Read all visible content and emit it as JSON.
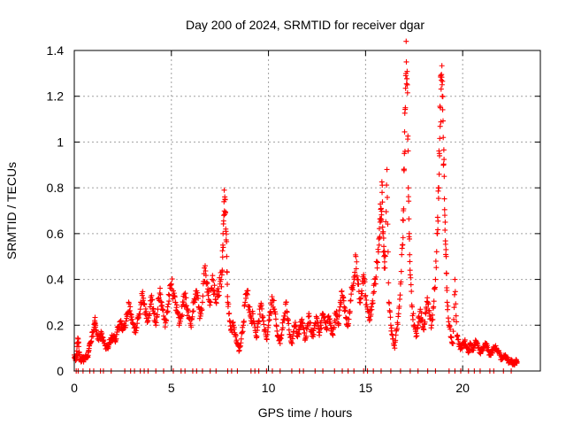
{
  "chart_data": {
    "type": "scatter",
    "title": "Day 200 of 2024, SRMTID for receiver dgar",
    "xlabel": "GPS time / hours",
    "ylabel": "SRMTID / TECUs",
    "xlim": [
      0,
      24
    ],
    "ylim": [
      0,
      1.4
    ],
    "x_ticks": [
      0,
      5,
      10,
      15,
      20
    ],
    "x_tick_labels": [
      "0",
      "5",
      "10",
      "15",
      "20"
    ],
    "y_ticks": [
      0,
      0.2,
      0.4,
      0.6,
      0.8,
      1,
      1.2,
      1.4
    ],
    "y_tick_labels": [
      "0",
      "0.2",
      "0.4",
      "0.6",
      "0.8",
      "1",
      "1.2",
      "1.4"
    ],
    "grid": true,
    "marker": "+",
    "colors": {
      "series": "#ff0000",
      "axes": "#000000",
      "grid": "#a0a0a0"
    },
    "series": [
      {
        "name": "SRMTID",
        "points": [
          [
            0.0,
            0.07
          ],
          [
            0.05,
            0.06
          ],
          [
            0.1,
            0.05
          ],
          [
            0.15,
            0.12
          ],
          [
            0.2,
            0.14
          ],
          [
            0.25,
            0.08
          ],
          [
            0.3,
            0.05
          ],
          [
            0.35,
            0.04
          ],
          [
            0.4,
            0.06
          ],
          [
            0.5,
            0.05
          ],
          [
            0.6,
            0.07
          ],
          [
            0.7,
            0.06
          ],
          [
            0.75,
            0.09
          ],
          [
            0.8,
            0.12
          ],
          [
            0.9,
            0.15
          ],
          [
            1.0,
            0.18
          ],
          [
            1.05,
            0.22
          ],
          [
            1.1,
            0.2
          ],
          [
            1.2,
            0.14
          ],
          [
            1.3,
            0.15
          ],
          [
            1.4,
            0.16
          ],
          [
            1.5,
            0.13
          ],
          [
            1.6,
            0.11
          ],
          [
            1.7,
            0.1
          ],
          [
            1.8,
            0.12
          ],
          [
            1.9,
            0.14
          ],
          [
            2.0,
            0.15
          ],
          [
            2.1,
            0.13
          ],
          [
            2.2,
            0.17
          ],
          [
            2.3,
            0.19
          ],
          [
            2.4,
            0.22
          ],
          [
            2.5,
            0.18
          ],
          [
            2.6,
            0.2
          ],
          [
            2.7,
            0.23
          ],
          [
            2.8,
            0.3
          ],
          [
            2.9,
            0.25
          ],
          [
            3.0,
            0.21
          ],
          [
            3.1,
            0.17
          ],
          [
            3.2,
            0.19
          ],
          [
            3.3,
            0.24
          ],
          [
            3.4,
            0.27
          ],
          [
            3.5,
            0.33
          ],
          [
            3.6,
            0.29
          ],
          [
            3.7,
            0.26
          ],
          [
            3.8,
            0.22
          ],
          [
            3.9,
            0.28
          ],
          [
            4.0,
            0.31
          ],
          [
            4.1,
            0.25
          ],
          [
            4.2,
            0.2
          ],
          [
            4.3,
            0.27
          ],
          [
            4.4,
            0.34
          ],
          [
            4.5,
            0.3
          ],
          [
            4.6,
            0.24
          ],
          [
            4.7,
            0.21
          ],
          [
            4.8,
            0.28
          ],
          [
            4.9,
            0.33
          ],
          [
            5.0,
            0.38
          ],
          [
            5.1,
            0.35
          ],
          [
            5.2,
            0.3
          ],
          [
            5.3,
            0.26
          ],
          [
            5.4,
            0.2
          ],
          [
            5.5,
            0.24
          ],
          [
            5.6,
            0.29
          ],
          [
            5.7,
            0.32
          ],
          [
            5.8,
            0.27
          ],
          [
            5.9,
            0.23
          ],
          [
            6.0,
            0.2
          ],
          [
            6.1,
            0.26
          ],
          [
            6.2,
            0.3
          ],
          [
            6.3,
            0.35
          ],
          [
            6.4,
            0.28
          ],
          [
            6.5,
            0.24
          ],
          [
            6.6,
            0.3
          ],
          [
            6.7,
            0.45
          ],
          [
            6.8,
            0.38
          ],
          [
            6.9,
            0.33
          ],
          [
            7.0,
            0.3
          ],
          [
            7.1,
            0.4
          ],
          [
            7.2,
            0.35
          ],
          [
            7.3,
            0.3
          ],
          [
            7.4,
            0.36
          ],
          [
            7.5,
            0.38
          ],
          [
            7.6,
            0.42
          ],
          [
            7.65,
            0.55
          ],
          [
            7.7,
            0.68
          ],
          [
            7.75,
            0.76
          ],
          [
            7.8,
            0.62
          ],
          [
            7.85,
            0.5
          ],
          [
            7.9,
            0.3
          ],
          [
            8.0,
            0.22
          ],
          [
            8.1,
            0.18
          ],
          [
            8.2,
            0.2
          ],
          [
            8.3,
            0.15
          ],
          [
            8.4,
            0.12
          ],
          [
            8.5,
            0.09
          ],
          [
            8.6,
            0.14
          ],
          [
            8.7,
            0.2
          ],
          [
            8.8,
            0.3
          ],
          [
            8.9,
            0.35
          ],
          [
            9.0,
            0.28
          ],
          [
            9.1,
            0.22
          ],
          [
            9.2,
            0.25
          ],
          [
            9.3,
            0.19
          ],
          [
            9.4,
            0.15
          ],
          [
            9.5,
            0.22
          ],
          [
            9.6,
            0.28
          ],
          [
            9.7,
            0.24
          ],
          [
            9.8,
            0.18
          ],
          [
            9.9,
            0.14
          ],
          [
            10.0,
            0.2
          ],
          [
            10.1,
            0.26
          ],
          [
            10.2,
            0.31
          ],
          [
            10.3,
            0.27
          ],
          [
            10.4,
            0.2
          ],
          [
            10.5,
            0.15
          ],
          [
            10.6,
            0.12
          ],
          [
            10.7,
            0.18
          ],
          [
            10.8,
            0.24
          ],
          [
            10.9,
            0.3
          ],
          [
            11.0,
            0.22
          ],
          [
            11.1,
            0.16
          ],
          [
            11.2,
            0.12
          ],
          [
            11.3,
            0.17
          ],
          [
            11.4,
            0.2
          ],
          [
            11.5,
            0.15
          ],
          [
            11.6,
            0.18
          ],
          [
            11.7,
            0.22
          ],
          [
            11.8,
            0.19
          ],
          [
            11.9,
            0.14
          ],
          [
            12.0,
            0.2
          ],
          [
            12.1,
            0.24
          ],
          [
            12.2,
            0.18
          ],
          [
            12.3,
            0.15
          ],
          [
            12.4,
            0.21
          ],
          [
            12.5,
            0.23
          ],
          [
            12.6,
            0.17
          ],
          [
            12.7,
            0.2
          ],
          [
            12.8,
            0.25
          ],
          [
            12.9,
            0.22
          ],
          [
            13.0,
            0.18
          ],
          [
            13.1,
            0.24
          ],
          [
            13.2,
            0.2
          ],
          [
            13.3,
            0.16
          ],
          [
            13.4,
            0.22
          ],
          [
            13.5,
            0.26
          ],
          [
            13.6,
            0.2
          ],
          [
            13.7,
            0.3
          ],
          [
            13.8,
            0.33
          ],
          [
            13.9,
            0.28
          ],
          [
            14.0,
            0.23
          ],
          [
            14.1,
            0.2
          ],
          [
            14.2,
            0.26
          ],
          [
            14.3,
            0.36
          ],
          [
            14.4,
            0.41
          ],
          [
            14.5,
            0.5
          ],
          [
            14.6,
            0.38
          ],
          [
            14.7,
            0.3
          ],
          [
            14.8,
            0.35
          ],
          [
            14.9,
            0.42
          ],
          [
            15.0,
            0.33
          ],
          [
            15.1,
            0.27
          ],
          [
            15.2,
            0.22
          ],
          [
            15.3,
            0.28
          ],
          [
            15.4,
            0.34
          ],
          [
            15.5,
            0.4
          ],
          [
            15.6,
            0.45
          ],
          [
            15.7,
            0.55
          ],
          [
            15.75,
            0.65
          ],
          [
            15.8,
            0.71
          ],
          [
            15.85,
            0.78
          ],
          [
            15.9,
            0.6
          ],
          [
            15.95,
            0.5
          ],
          [
            16.0,
            0.45
          ],
          [
            16.1,
            0.88
          ],
          [
            16.2,
            0.3
          ],
          [
            16.3,
            0.2
          ],
          [
            16.4,
            0.14
          ],
          [
            16.5,
            0.1
          ],
          [
            16.6,
            0.18
          ],
          [
            16.7,
            0.25
          ],
          [
            16.8,
            0.38
          ],
          [
            16.9,
            0.55
          ],
          [
            16.95,
            0.7
          ],
          [
            17.0,
            0.95
          ],
          [
            17.05,
            1.15
          ],
          [
            17.1,
            1.35
          ],
          [
            17.15,
            1.25
          ],
          [
            17.2,
            0.8
          ],
          [
            17.25,
            0.6
          ],
          [
            17.3,
            0.42
          ],
          [
            17.4,
            0.28
          ],
          [
            17.5,
            0.2
          ],
          [
            17.6,
            0.15
          ],
          [
            17.7,
            0.2
          ],
          [
            17.8,
            0.26
          ],
          [
            17.9,
            0.22
          ],
          [
            18.0,
            0.18
          ],
          [
            18.1,
            0.25
          ],
          [
            18.2,
            0.3
          ],
          [
            18.3,
            0.24
          ],
          [
            18.4,
            0.2
          ],
          [
            18.5,
            0.28
          ],
          [
            18.6,
            0.4
          ],
          [
            18.7,
            0.6
          ],
          [
            18.75,
            0.8
          ],
          [
            18.8,
            0.95
          ],
          [
            18.85,
            1.15
          ],
          [
            18.9,
            1.27
          ],
          [
            18.95,
            1.2
          ],
          [
            19.0,
            1.02
          ],
          [
            19.05,
            0.85
          ],
          [
            19.1,
            0.65
          ],
          [
            19.15,
            0.5
          ],
          [
            19.2,
            0.3
          ],
          [
            19.3,
            0.2
          ],
          [
            19.4,
            0.15
          ],
          [
            19.5,
            0.12
          ],
          [
            19.6,
            0.4
          ],
          [
            19.7,
            0.15
          ],
          [
            19.8,
            0.12
          ],
          [
            19.9,
            0.1
          ],
          [
            20.0,
            0.11
          ],
          [
            20.1,
            0.13
          ],
          [
            20.2,
            0.1
          ],
          [
            20.3,
            0.08
          ],
          [
            20.4,
            0.12
          ],
          [
            20.5,
            0.09
          ],
          [
            20.6,
            0.11
          ],
          [
            20.7,
            0.13
          ],
          [
            20.8,
            0.1
          ],
          [
            20.9,
            0.08
          ],
          [
            21.0,
            0.09
          ],
          [
            21.1,
            0.1
          ],
          [
            21.2,
            0.12
          ],
          [
            21.3,
            0.09
          ],
          [
            21.4,
            0.07
          ],
          [
            21.5,
            0.08
          ],
          [
            21.6,
            0.1
          ],
          [
            21.7,
            0.11
          ],
          [
            21.8,
            0.09
          ],
          [
            21.9,
            0.07
          ],
          [
            22.0,
            0.05
          ],
          [
            22.1,
            0.06
          ],
          [
            22.2,
            0.07
          ],
          [
            22.3,
            0.05
          ],
          [
            22.4,
            0.04
          ],
          [
            22.5,
            0.05
          ],
          [
            22.6,
            0.03
          ],
          [
            22.7,
            0.04
          ],
          [
            22.75,
            0.05
          ],
          [
            22.8,
            0.04
          ]
        ],
        "zero_points": [
          0.1,
          0.2,
          0.45,
          0.8,
          1.0,
          1.35,
          1.5,
          1.9,
          2.6,
          2.9,
          3.1,
          3.4,
          3.6,
          3.8,
          4.2,
          4.6,
          5.1,
          5.5,
          5.7,
          6.1,
          6.3,
          6.6,
          7.0,
          7.3,
          7.9,
          8.1,
          8.4,
          9.1,
          9.3,
          9.5,
          9.9,
          10.2,
          10.6,
          11.2,
          11.6,
          11.8,
          12.4,
          12.8,
          13.4,
          13.8,
          14.1,
          14.4,
          14.9,
          15.1,
          15.4,
          15.8,
          16.3,
          16.8,
          17.3,
          17.7,
          18.2,
          18.6,
          19.3,
          19.6,
          19.9,
          20.3,
          20.6,
          20.9,
          21.4,
          21.6,
          22.1,
          22.5
        ]
      }
    ]
  }
}
